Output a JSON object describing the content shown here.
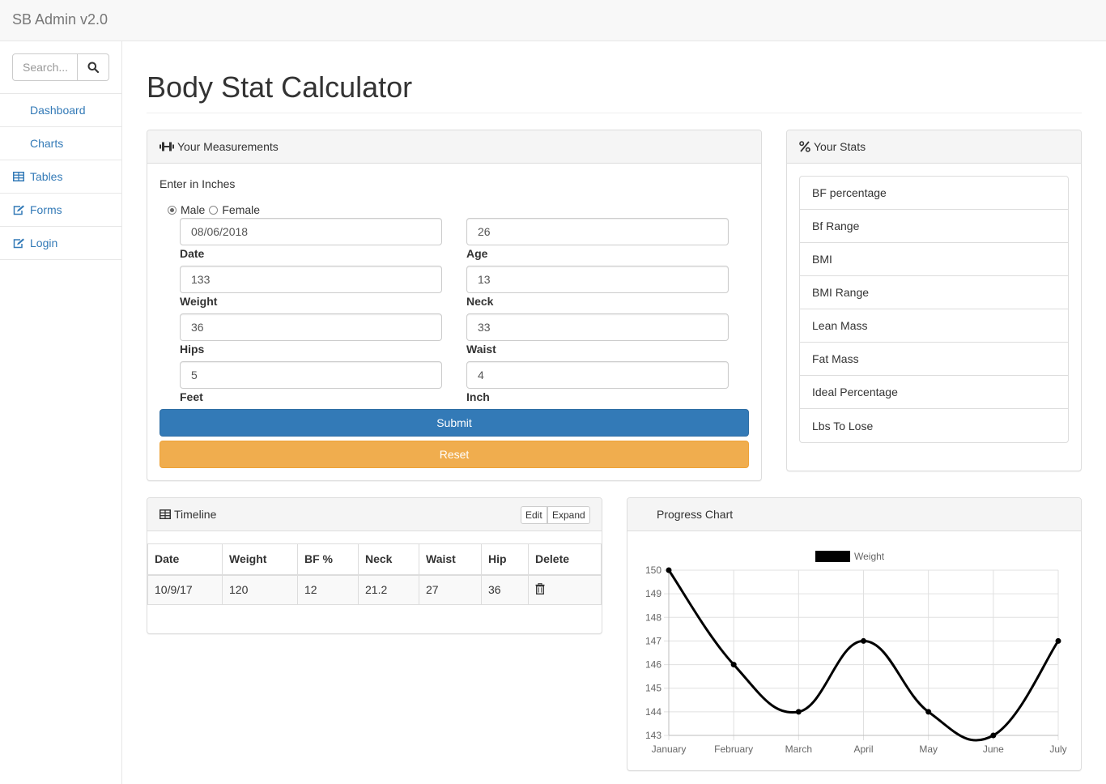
{
  "app": {
    "brand": "SB Admin v2.0"
  },
  "sidebar": {
    "search_placeholder": "Search...",
    "items": [
      {
        "label": "Dashboard",
        "icon": "none"
      },
      {
        "label": "Charts",
        "icon": "none"
      },
      {
        "label": "Tables",
        "icon": "table-icon"
      },
      {
        "label": "Forms",
        "icon": "edit-icon"
      },
      {
        "label": "Login",
        "icon": "edit-icon"
      }
    ]
  },
  "page": {
    "title": "Body Stat Calculator"
  },
  "measurements": {
    "heading": "Your Measurements",
    "instruction": "Enter in Inches",
    "gender_options": [
      "Male",
      "Female"
    ],
    "gender_selected": "Male",
    "fields": {
      "date": {
        "label": "Date",
        "value": "08/06/2018"
      },
      "age": {
        "label": "Age",
        "value": "26"
      },
      "weight": {
        "label": "Weight",
        "value": "133"
      },
      "neck": {
        "label": "Neck",
        "value": "13"
      },
      "hips": {
        "label": "Hips",
        "value": "36"
      },
      "waist": {
        "label": "Waist",
        "value": "33"
      },
      "feet": {
        "label": "Feet",
        "value": "5"
      },
      "inch": {
        "label": "Inch",
        "value": "4"
      }
    },
    "submit_label": "Submit",
    "reset_label": "Reset",
    "colors": {
      "submit": "#337ab7",
      "reset": "#f0ad4e"
    }
  },
  "stats": {
    "heading": "Your Stats",
    "items": [
      "BF percentage",
      "Bf Range",
      "BMI",
      "BMI Range",
      "Lean Mass",
      "Fat Mass",
      "Ideal Percentage",
      "Lbs To Lose"
    ]
  },
  "timeline": {
    "heading": "Timeline",
    "edit_label": "Edit",
    "expand_label": "Expand",
    "columns": [
      "Date",
      "Weight",
      "BF %",
      "Neck",
      "Waist",
      "Hip",
      "Delete"
    ],
    "rows": [
      [
        "10/9/17",
        "120",
        "12",
        "21.2",
        "27",
        "36"
      ]
    ]
  },
  "progress": {
    "heading": "Progress Chart",
    "chart_data": {
      "type": "line",
      "categories": [
        "January",
        "February",
        "March",
        "April",
        "May",
        "June",
        "July"
      ],
      "series": [
        {
          "name": "Weight",
          "values": [
            150,
            146,
            144,
            147,
            144,
            143,
            147
          ],
          "color": "#000000"
        }
      ],
      "ylim": [
        143,
        150
      ],
      "yticks": [
        143,
        144,
        145,
        146,
        147,
        148,
        149,
        150
      ],
      "legend_position": "top",
      "grid": true,
      "curve": "smooth"
    }
  }
}
